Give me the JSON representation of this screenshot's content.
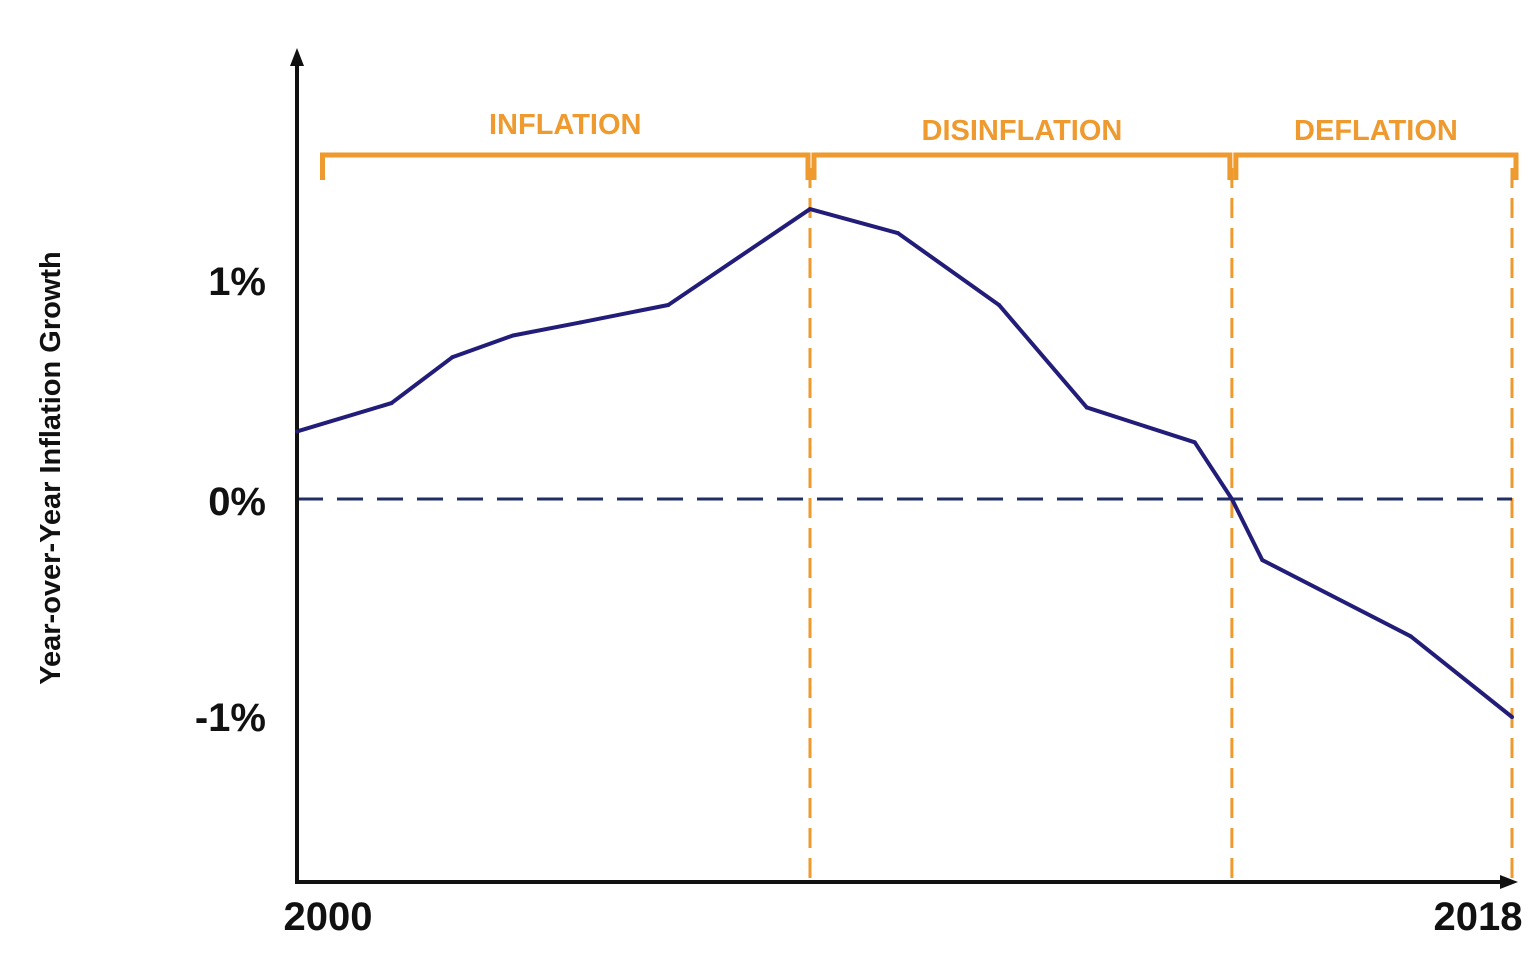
{
  "chart_data": {
    "type": "line",
    "title": "",
    "xlabel": "",
    "ylabel": "Year-over-Year Inflation Growth",
    "xlim": [
      2000,
      2018
    ],
    "ylim": [
      -1.75,
      1.9
    ],
    "x_tick_labels": [
      {
        "value": 2000,
        "label": "2000"
      },
      {
        "value": 2018,
        "label": "2018"
      }
    ],
    "y_tick_labels": [
      {
        "value": 1,
        "label": "1%"
      },
      {
        "value": 0,
        "label": "0%"
      },
      {
        "value": -1,
        "label": "-1%"
      }
    ],
    "grid": false,
    "series": [
      {
        "color": "#231d7a",
        "points": [
          {
            "x": 2000.0,
            "y": 0.31
          },
          {
            "x": 2001.4,
            "y": 0.44
          },
          {
            "x": 2002.3,
            "y": 0.65
          },
          {
            "x": 2003.2,
            "y": 0.75
          },
          {
            "x": 2004.2,
            "y": 0.81
          },
          {
            "x": 2005.5,
            "y": 0.89
          },
          {
            "x": 2007.6,
            "y": 1.33
          },
          {
            "x": 2008.9,
            "y": 1.22
          },
          {
            "x": 2010.4,
            "y": 0.89
          },
          {
            "x": 2011.7,
            "y": 0.42
          },
          {
            "x": 2013.3,
            "y": 0.26
          },
          {
            "x": 2013.85,
            "y": 0.0
          },
          {
            "x": 2014.3,
            "y": -0.28
          },
          {
            "x": 2016.5,
            "y": -0.63
          },
          {
            "x": 2018.0,
            "y": -1.0
          }
        ]
      }
    ],
    "reference_line": {
      "y": 0,
      "style": "dashed",
      "color": "#1f2f66"
    },
    "phases": [
      {
        "label": "INFLATION",
        "start": 2000.2,
        "end": 2007.6
      },
      {
        "label": "DISINFLATION",
        "start": 2007.6,
        "end": 2013.85
      },
      {
        "label": "DEFLATION",
        "start": 2013.85,
        "end": 2018.0
      }
    ],
    "phase_color": "#ee9a2e",
    "phase_boundaries": [
      2007.6,
      2013.85,
      2018.0
    ]
  }
}
